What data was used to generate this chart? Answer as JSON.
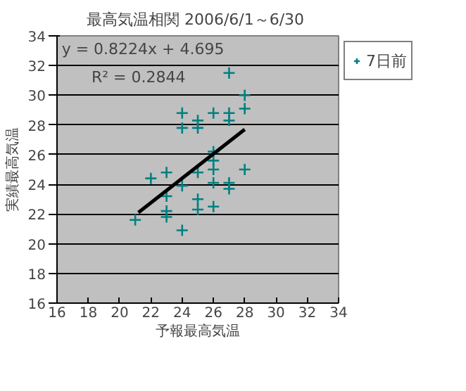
{
  "chart_data": {
    "type": "scatter",
    "title": "最高気温相関  2006/6/1～6/30",
    "xlabel": "予報最高気温",
    "ylabel": "実績最高気温",
    "xlim": [
      16,
      34
    ],
    "xticks": [
      16,
      18,
      20,
      22,
      24,
      26,
      28,
      30,
      32,
      34
    ],
    "ylim": [
      16,
      34
    ],
    "yticks": [
      16,
      18,
      20,
      22,
      24,
      26,
      28,
      30,
      32,
      34
    ],
    "grid": "y",
    "legend": "right",
    "marker": "cross",
    "annotations": [
      "y = 0.8224x + 4.695",
      "R² = 0.2844"
    ],
    "series": [
      {
        "name": "7日前",
        "color": "#008080",
        "x": [
          21,
          22,
          23,
          23,
          23,
          23,
          24,
          24,
          24,
          24,
          25,
          25,
          25,
          25,
          25,
          26,
          26,
          26,
          26,
          26,
          26,
          27,
          27,
          27,
          27,
          27,
          28,
          28,
          28
        ],
        "values": [
          21.6,
          24.4,
          24.8,
          23.2,
          22.2,
          21.8,
          28.8,
          27.8,
          23.9,
          20.9,
          28.3,
          27.8,
          24.8,
          23.0,
          22.3,
          28.8,
          26.2,
          25.6,
          25.0,
          24.1,
          22.5,
          31.5,
          28.8,
          28.3,
          24.1,
          23.7,
          30.0,
          29.1,
          25.0
        ]
      },
      {
        "type": "line",
        "marker": "none",
        "color": "#000000",
        "x": [
          21.2,
          28
        ],
        "values": [
          22.1,
          27.7
        ]
      }
    ]
  }
}
